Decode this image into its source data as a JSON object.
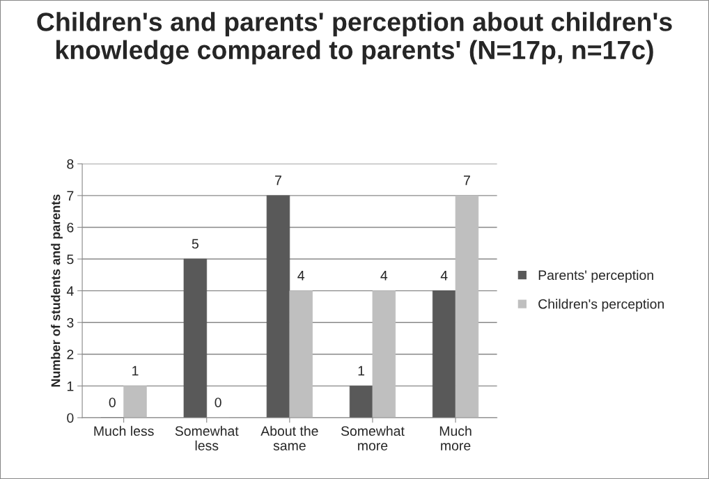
{
  "chart_data": {
    "type": "bar",
    "title": "Children's and parents' perception about children's knowledge compared to parents' (N=17p, n=17c)",
    "ylabel": "Number of students and parents",
    "categories": [
      "Much less",
      "Somewhat\nless",
      "About the\nsame",
      "Somewhat\nmore",
      "Much\nmore"
    ],
    "series": [
      {
        "name": "Parents' perception",
        "color": "#595959",
        "values": [
          0,
          5,
          7,
          1,
          4
        ]
      },
      {
        "name": "Children's perception",
        "color": "#bfbfbf",
        "values": [
          1,
          0,
          4,
          4,
          7
        ]
      }
    ],
    "ylim": [
      0,
      8
    ],
    "yticks": [
      0,
      1,
      2,
      3,
      4,
      5,
      6,
      7,
      8
    ],
    "grid": "y",
    "legend": "right",
    "data_labels": true
  }
}
